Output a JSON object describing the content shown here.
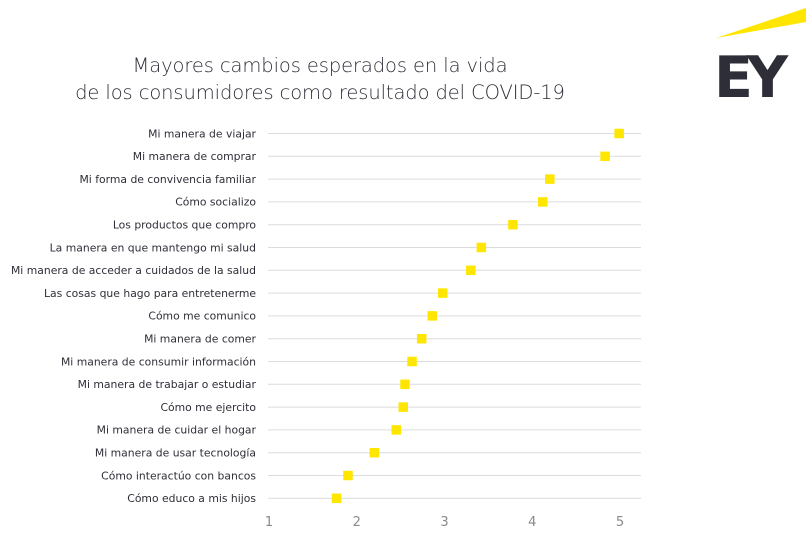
{
  "brand": {
    "logo_text": "EY",
    "accent_color": "#ffe600",
    "dark_color": "#2e2e38"
  },
  "chart_data": {
    "type": "scatter",
    "title": "Mayores cambios esperados en la vida de los consumidores como resultado del COVID-19",
    "title_lines": [
      "Mayores cambios esperados en la vida",
      "de los consumidores como resultado del COVID-19"
    ],
    "xlabel": "",
    "ylabel": "",
    "xlim": [
      1,
      5
    ],
    "x_ticks": [
      1,
      2,
      3,
      4,
      5
    ],
    "grid": "horizontal",
    "marker": "square",
    "marker_color": "#ffe600",
    "categories": [
      "Mi manera de viajar",
      "Mi manera de comprar",
      "Mi forma de convivencia familiar",
      "Cómo socializo",
      "Los productos que compro",
      "La manera en que mantengo mi salud",
      "Mi manera de acceder a cuidados de la salud",
      "Las cosas que hago para entretenerme",
      "Cómo me comunico",
      "Mi manera de comer",
      "Mi manera de consumir información",
      "Mi manera de trabajar o estudiar",
      "Cómo me ejercito",
      "Mi manera de cuidar el hogar",
      "Mi manera de usar tecnología",
      "Cómo interactúo con bancos",
      "Cómo educo a mis hijos"
    ],
    "values": [
      4.99,
      4.83,
      4.2,
      4.12,
      3.78,
      3.42,
      3.3,
      2.98,
      2.86,
      2.74,
      2.63,
      2.55,
      2.53,
      2.45,
      2.2,
      1.9,
      1.77
    ]
  }
}
